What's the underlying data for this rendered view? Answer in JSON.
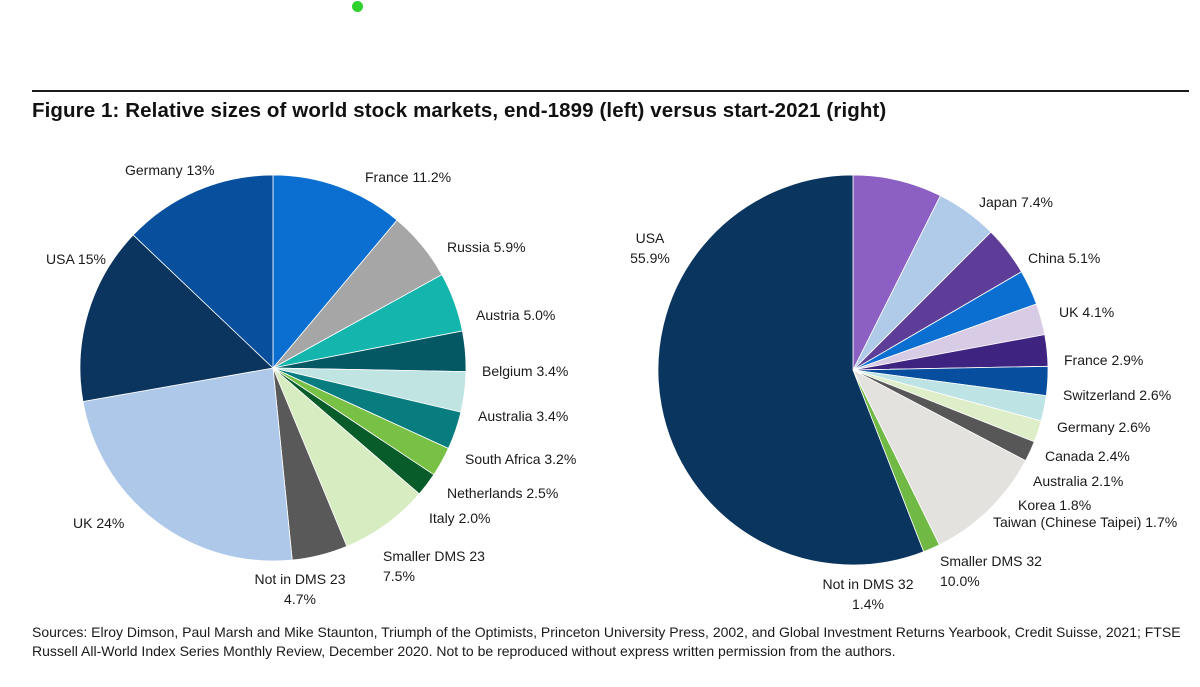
{
  "title": "Figure 1: Relative sizes of world stock markets, end-1899 (left) versus start-2021 (right)",
  "source": "Sources: Elroy Dimson, Paul Marsh and Mike Staunton, Triumph of the Optimists, Princeton University Press, 2002, and Global Investment Returns Yearbook, Credit Suisse, 2021; FTSE Russell All-World Index Series Monthly Review, December 2020. Not to be reproduced without express written permission from the authors.",
  "chart_data": [
    {
      "type": "pie",
      "title": "",
      "start": "12 o'clock, clockwise",
      "slices": [
        {
          "name": "France",
          "value": 11.2,
          "label": [
            "France 11.2%"
          ],
          "color": "#0a6fd1"
        },
        {
          "name": "Russia",
          "value": 5.9,
          "label": [
            "Russia 5.9%"
          ],
          "color": "#a6a6a6"
        },
        {
          "name": "Austria",
          "value": 5.0,
          "label": [
            "Austria 5.0%"
          ],
          "color": "#13b5ad"
        },
        {
          "name": "Belgium",
          "value": 3.4,
          "label": [
            "Belgium 3.4%"
          ],
          "color": "#045864"
        },
        {
          "name": "Australia",
          "value": 3.4,
          "label": [
            "Australia 3.4%"
          ],
          "color": "#bfe4e1"
        },
        {
          "name": "South Africa",
          "value": 3.2,
          "label": [
            "South Africa 3.2%"
          ],
          "color": "#077d80"
        },
        {
          "name": "Netherlands",
          "value": 2.5,
          "label": [
            "Netherlands 2.5%"
          ],
          "color": "#78c144"
        },
        {
          "name": "Italy",
          "value": 2.0,
          "label": [
            "Italy 2.0%"
          ],
          "color": "#075c2a"
        },
        {
          "name": "Smaller DMS 23",
          "value": 7.5,
          "label": [
            "Smaller DMS 23",
            "7.5%"
          ],
          "color": "#d7ecc1"
        },
        {
          "name": "Not in DMS 23",
          "value": 4.7,
          "label": [
            "Not in DMS 23",
            "4.7%"
          ],
          "color": "#595959"
        },
        {
          "name": "UK",
          "value": 24,
          "label": [
            "UK 24%"
          ],
          "color": "#aec8ea"
        },
        {
          "name": "USA",
          "value": 15,
          "label": [
            "USA 15%"
          ],
          "color": "#0b355e"
        },
        {
          "name": "Germany",
          "value": 13,
          "label": [
            "Germany 13%"
          ],
          "color": "#08509e"
        }
      ]
    },
    {
      "type": "pie",
      "title": "",
      "start": "12 o'clock, clockwise",
      "slices": [
        {
          "name": "Japan",
          "value": 7.4,
          "label": [
            "Japan 7.4%"
          ],
          "color": "#8b60c2"
        },
        {
          "name": "China",
          "value": 5.1,
          "label": [
            "China 5.1%"
          ],
          "color": "#b0cbea"
        },
        {
          "name": "UK",
          "value": 4.1,
          "label": [
            "UK 4.1%"
          ],
          "color": "#5e3d98"
        },
        {
          "name": "France",
          "value": 2.9,
          "label": [
            "France 2.9%"
          ],
          "color": "#0a6fd1"
        },
        {
          "name": "Switzerland",
          "value": 2.6,
          "label": [
            "Switzerland 2.6%"
          ],
          "color": "#d7cbe6"
        },
        {
          "name": "Germany",
          "value": 2.6,
          "label": [
            "Germany 2.6%"
          ],
          "color": "#3f2380"
        },
        {
          "name": "Canada",
          "value": 2.4,
          "label": [
            "Canada 2.4%"
          ],
          "color": "#084e9f"
        },
        {
          "name": "Australia",
          "value": 2.1,
          "label": [
            "Australia 2.1%"
          ],
          "color": "#bde3e5"
        },
        {
          "name": "Korea",
          "value": 1.8,
          "label": [
            "Korea 1.8%"
          ],
          "color": "#ddeec9"
        },
        {
          "name": "Taiwan (Chinese Taipei)",
          "value": 1.7,
          "label": [
            "Taiwan (Chinese Taipei) 1.7%"
          ],
          "color": "#575757"
        },
        {
          "name": "Smaller DMS 32",
          "value": 10.0,
          "label": [
            "Smaller DMS 32",
            "10.0%"
          ],
          "color": "#e4e2de"
        },
        {
          "name": "Not in DMS 32",
          "value": 1.4,
          "label": [
            "Not in DMS 32",
            "1.4%"
          ],
          "color": "#6fb944"
        },
        {
          "name": "USA",
          "value": 55.9,
          "label": [
            "USA",
            "55.9%"
          ],
          "color": "#0a355e"
        }
      ]
    }
  ]
}
